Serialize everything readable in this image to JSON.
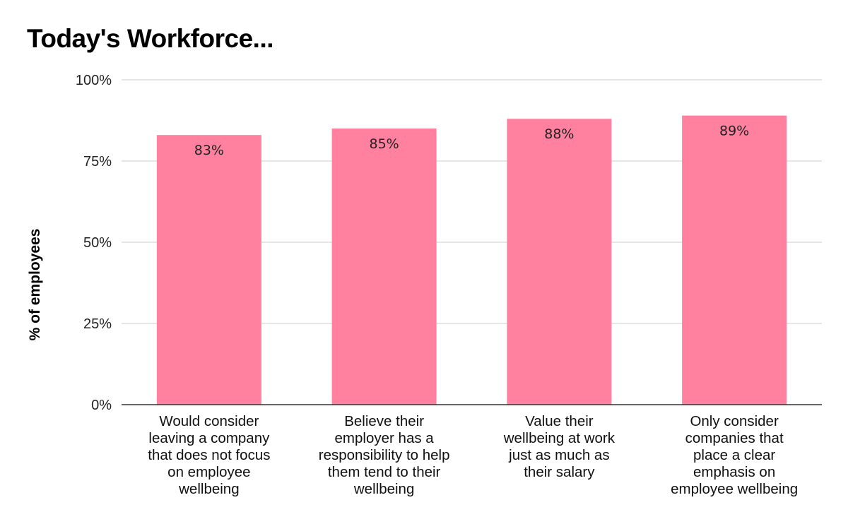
{
  "chart_data": {
    "type": "bar",
    "title": "Today's Workforce...",
    "xlabel": "",
    "ylabel": "% of employees",
    "ylim": [
      0,
      100
    ],
    "yticks": [
      "0%",
      "25%",
      "50%",
      "75%",
      "100%"
    ],
    "grid": true,
    "legend": "none",
    "bar_color": "#ff809f",
    "categories": [
      [
        "Would consider",
        "leaving a company",
        "that does not focus",
        "on employee",
        "wellbeing"
      ],
      [
        "Believe their",
        "employer has a",
        "responsibility to help",
        "them tend to their",
        "wellbeing"
      ],
      [
        "Value their",
        "wellbeing at work",
        "just as much as",
        "their salary"
      ],
      [
        "Only consider",
        "companies that",
        "place a clear",
        "emphasis on",
        "employee wellbeing"
      ]
    ],
    "values": [
      83,
      85,
      88,
      89
    ],
    "data_labels": [
      "83%",
      "85%",
      "88%",
      "89%"
    ]
  }
}
